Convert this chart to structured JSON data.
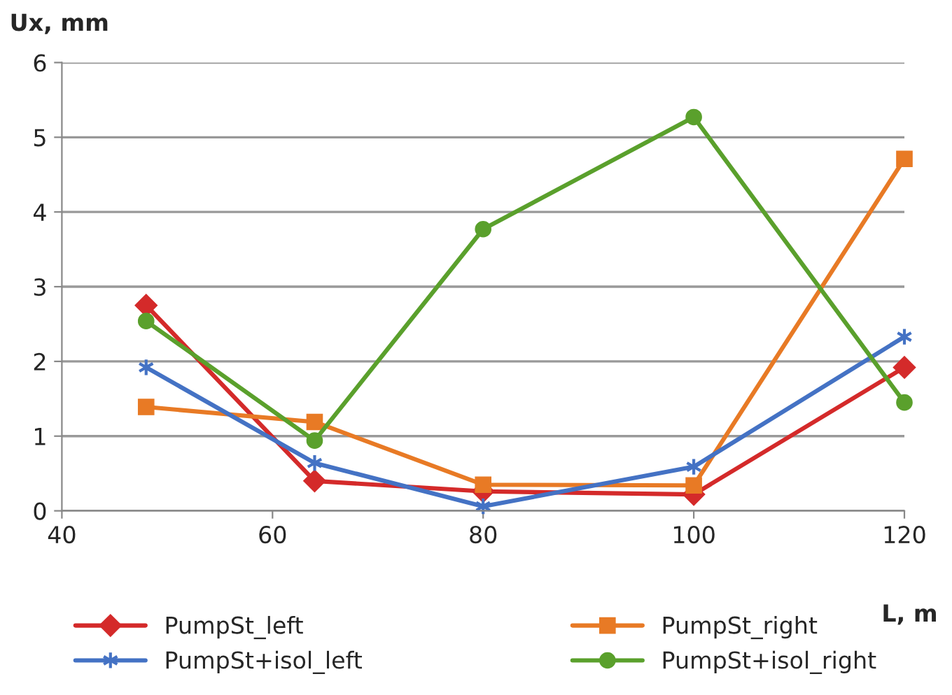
{
  "chart_data": {
    "type": "line",
    "xlabel": "L, m",
    "ylabel": "Ux, mm",
    "x": [
      48,
      64,
      80,
      100,
      120
    ],
    "series": [
      {
        "name": "PumpSt_left",
        "color": "#d42a2a",
        "marker": "diamond",
        "values": [
          2.75,
          0.4,
          0.26,
          0.22,
          1.92
        ]
      },
      {
        "name": "PumpSt_right",
        "color": "#e87a25",
        "marker": "square",
        "values": [
          1.39,
          1.19,
          0.35,
          0.34,
          4.71
        ]
      },
      {
        "name": "PumpSt+isol_left",
        "color": "#4472c4",
        "marker": "cross",
        "values": [
          1.92,
          0.64,
          0.06,
          0.59,
          2.33
        ]
      },
      {
        "name": "PumpSt+isol_right",
        "color": "#5aa02c",
        "marker": "circle",
        "values": [
          2.54,
          0.94,
          3.77,
          5.27,
          1.45
        ]
      }
    ],
    "xlim": [
      40,
      120
    ],
    "xticks": [
      40,
      60,
      80,
      100,
      120
    ],
    "ylim": [
      0,
      6
    ],
    "yticks": [
      0,
      1,
      2,
      3,
      4,
      5,
      6
    ],
    "grid": "y",
    "legend": "bottom"
  }
}
